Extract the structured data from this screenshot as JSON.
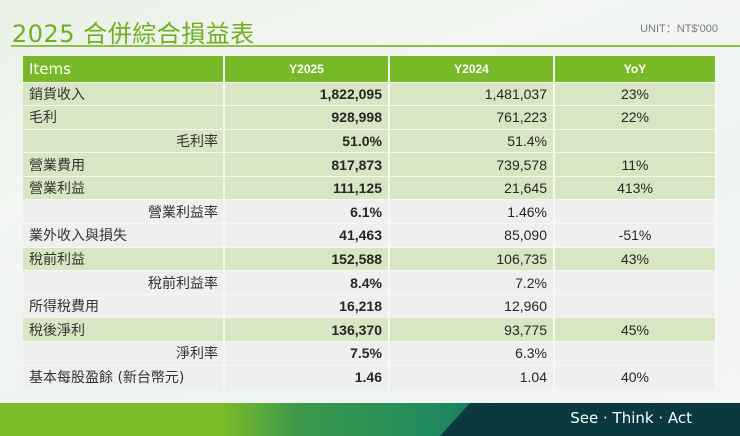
{
  "header": {
    "title": "2025 合併綜合損益表",
    "unit": "UNIT：NT$'000"
  },
  "table": {
    "columns": [
      "Items",
      "Y2025",
      "Y2024",
      "YoY"
    ],
    "rows": [
      {
        "item": "銷貨收入",
        "y2025": "1,822,095",
        "y2024": "1,481,037",
        "yoy": "23%",
        "sub": false,
        "shade": "green"
      },
      {
        "item": "毛利",
        "y2025": "928,998",
        "y2024": "761,223",
        "yoy": "22%",
        "sub": false,
        "shade": "green"
      },
      {
        "item": "毛利率",
        "y2025": "51.0%",
        "y2024": "51.4%",
        "yoy": "",
        "sub": true,
        "shade": "green"
      },
      {
        "item": "營業費用",
        "y2025": "817,873",
        "y2024": "739,578",
        "yoy": "11%",
        "sub": false,
        "shade": "green"
      },
      {
        "item": "營業利益",
        "y2025": "111,125",
        "y2024": "21,645",
        "yoy": "413%",
        "sub": false,
        "shade": "green"
      },
      {
        "item": "營業利益率",
        "y2025": "6.1%",
        "y2024": "1.46%",
        "yoy": "",
        "sub": true,
        "shade": "gray"
      },
      {
        "item": "業外收入與損失",
        "y2025": "41,463",
        "y2024": "85,090",
        "yoy": "-51%",
        "sub": false,
        "shade": "gray"
      },
      {
        "item": "稅前利益",
        "y2025": "152,588",
        "y2024": "106,735",
        "yoy": "43%",
        "sub": false,
        "shade": "green"
      },
      {
        "item": "稅前利益率",
        "y2025": "8.4%",
        "y2024": "7.2%",
        "yoy": "",
        "sub": true,
        "shade": "gray"
      },
      {
        "item": "所得稅費用",
        "y2025": "16,218",
        "y2024": "12,960",
        "yoy": "",
        "sub": false,
        "shade": "gray"
      },
      {
        "item": "稅後淨利",
        "y2025": "136,370",
        "y2024": "93,775",
        "yoy": "45%",
        "sub": false,
        "shade": "green"
      },
      {
        "item": "淨利率",
        "y2025": "7.5%",
        "y2024": "6.3%",
        "yoy": "",
        "sub": true,
        "shade": "gray"
      },
      {
        "item": "基本每股盈餘 (新台幣元)",
        "y2025": "1.46",
        "y2024": "1.04",
        "yoy": "40%",
        "sub": false,
        "shade": "gray"
      }
    ]
  },
  "footer": {
    "tagline": "See · Think · Act"
  },
  "colors": {
    "accent": "#78b927",
    "row_green": "#d7e6c3",
    "row_gray": "#efefee",
    "footer_dark": "#0a3a40"
  }
}
